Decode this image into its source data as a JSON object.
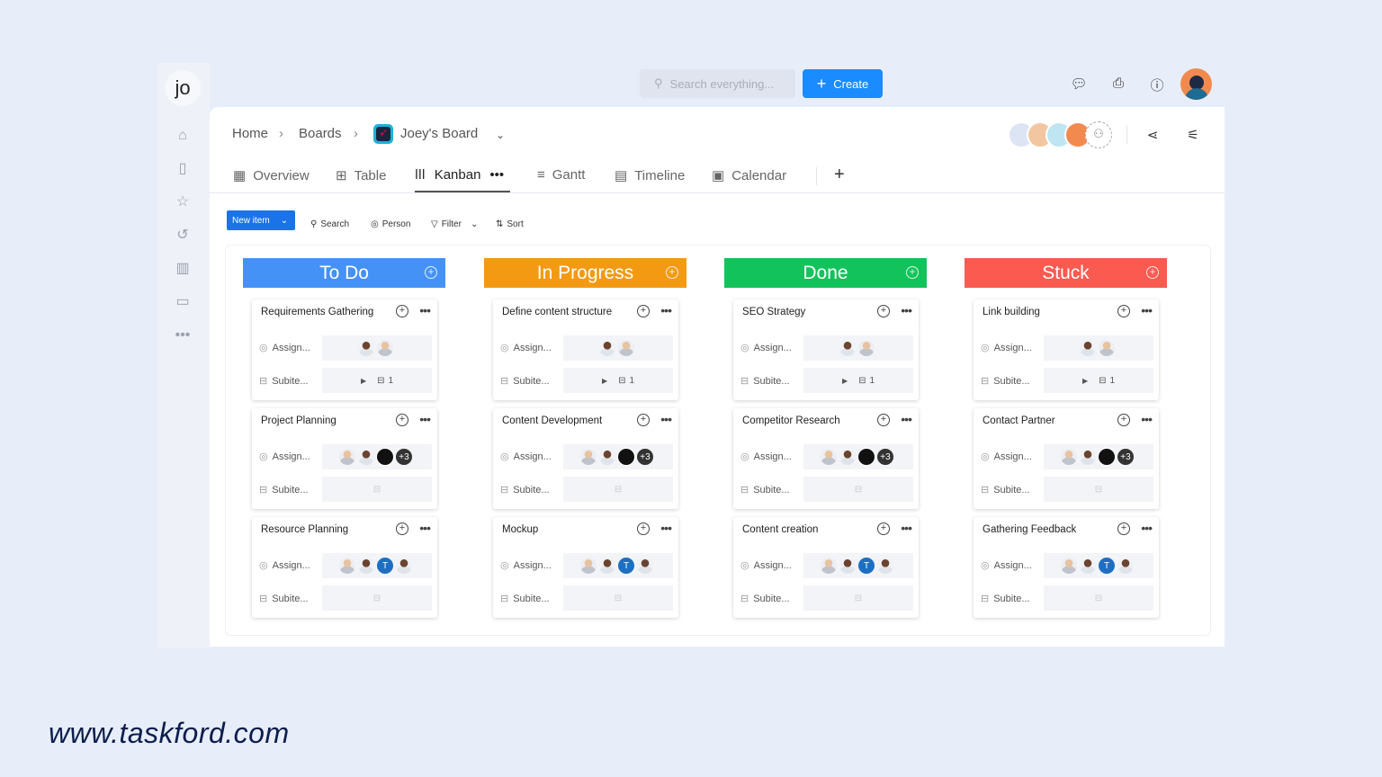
{
  "sidebar": {
    "logo": "jo",
    "items": [
      "home-icon",
      "reports-icon",
      "star-icon",
      "history-icon",
      "board-icon",
      "folder-icon",
      "more-icon"
    ]
  },
  "topbar": {
    "search_placeholder": "Search everything...",
    "create_label": "Create"
  },
  "breadcrumb": {
    "home": "Home",
    "boards": "Boards",
    "board": "Joey's Board"
  },
  "tabs": [
    {
      "label": "Overview",
      "icon": "grid-icon"
    },
    {
      "label": "Table",
      "icon": "table-icon"
    },
    {
      "label": "Kanban",
      "icon": "kanban-icon",
      "active": true
    },
    {
      "label": "Gantt",
      "icon": "gantt-icon"
    },
    {
      "label": "Timeline",
      "icon": "timeline-icon"
    },
    {
      "label": "Calendar",
      "icon": "calendar-icon"
    }
  ],
  "toolbar": {
    "new_item": "New item",
    "search": "Search",
    "person": "Person",
    "filter": "Filter",
    "sort": "Sort"
  },
  "row_labels": {
    "assign": "Assign...",
    "subitems": "Subite..."
  },
  "columns": [
    {
      "title": "To Do",
      "color": "#4592f7",
      "cards": [
        {
          "title": "Requirements Gathering",
          "assignees": [
            "d",
            "p"
          ],
          "subitems": "1"
        },
        {
          "title": "Project Planning",
          "assignees": [
            "p",
            "d",
            "k",
            "+3"
          ],
          "subitems": ""
        },
        {
          "title": "Resource Planning",
          "assignees": [
            "p",
            "d",
            "T",
            "d"
          ],
          "subitems": ""
        }
      ]
    },
    {
      "title": "In Progress",
      "color": "#f39a12",
      "cards": [
        {
          "title": "Define content structure",
          "assignees": [
            "d",
            "p"
          ],
          "subitems": "1"
        },
        {
          "title": "Content Development",
          "assignees": [
            "p",
            "d",
            "k",
            "+3"
          ],
          "subitems": ""
        },
        {
          "title": "Mockup",
          "assignees": [
            "p",
            "d",
            "T",
            "d"
          ],
          "subitems": ""
        }
      ]
    },
    {
      "title": "Done",
      "color": "#12c35b",
      "cards": [
        {
          "title": "SEO Strategy",
          "assignees": [
            "d",
            "p"
          ],
          "subitems": "1"
        },
        {
          "title": "Competitor Research",
          "assignees": [
            "p",
            "d",
            "k",
            "+3"
          ],
          "subitems": ""
        },
        {
          "title": "Content creation",
          "assignees": [
            "p",
            "d",
            "T",
            "d"
          ],
          "subitems": ""
        }
      ]
    },
    {
      "title": "Stuck",
      "color": "#fb5a50",
      "cards": [
        {
          "title": "Link building",
          "assignees": [
            "d",
            "p"
          ],
          "subitems": "1"
        },
        {
          "title": "Contact Partner",
          "assignees": [
            "p",
            "d",
            "k",
            "+3"
          ],
          "subitems": ""
        },
        {
          "title": "Gathering Feedback",
          "assignees": [
            "p",
            "d",
            "T",
            "d"
          ],
          "subitems": ""
        }
      ]
    }
  ],
  "footer": {
    "url": "www.taskford.com"
  }
}
